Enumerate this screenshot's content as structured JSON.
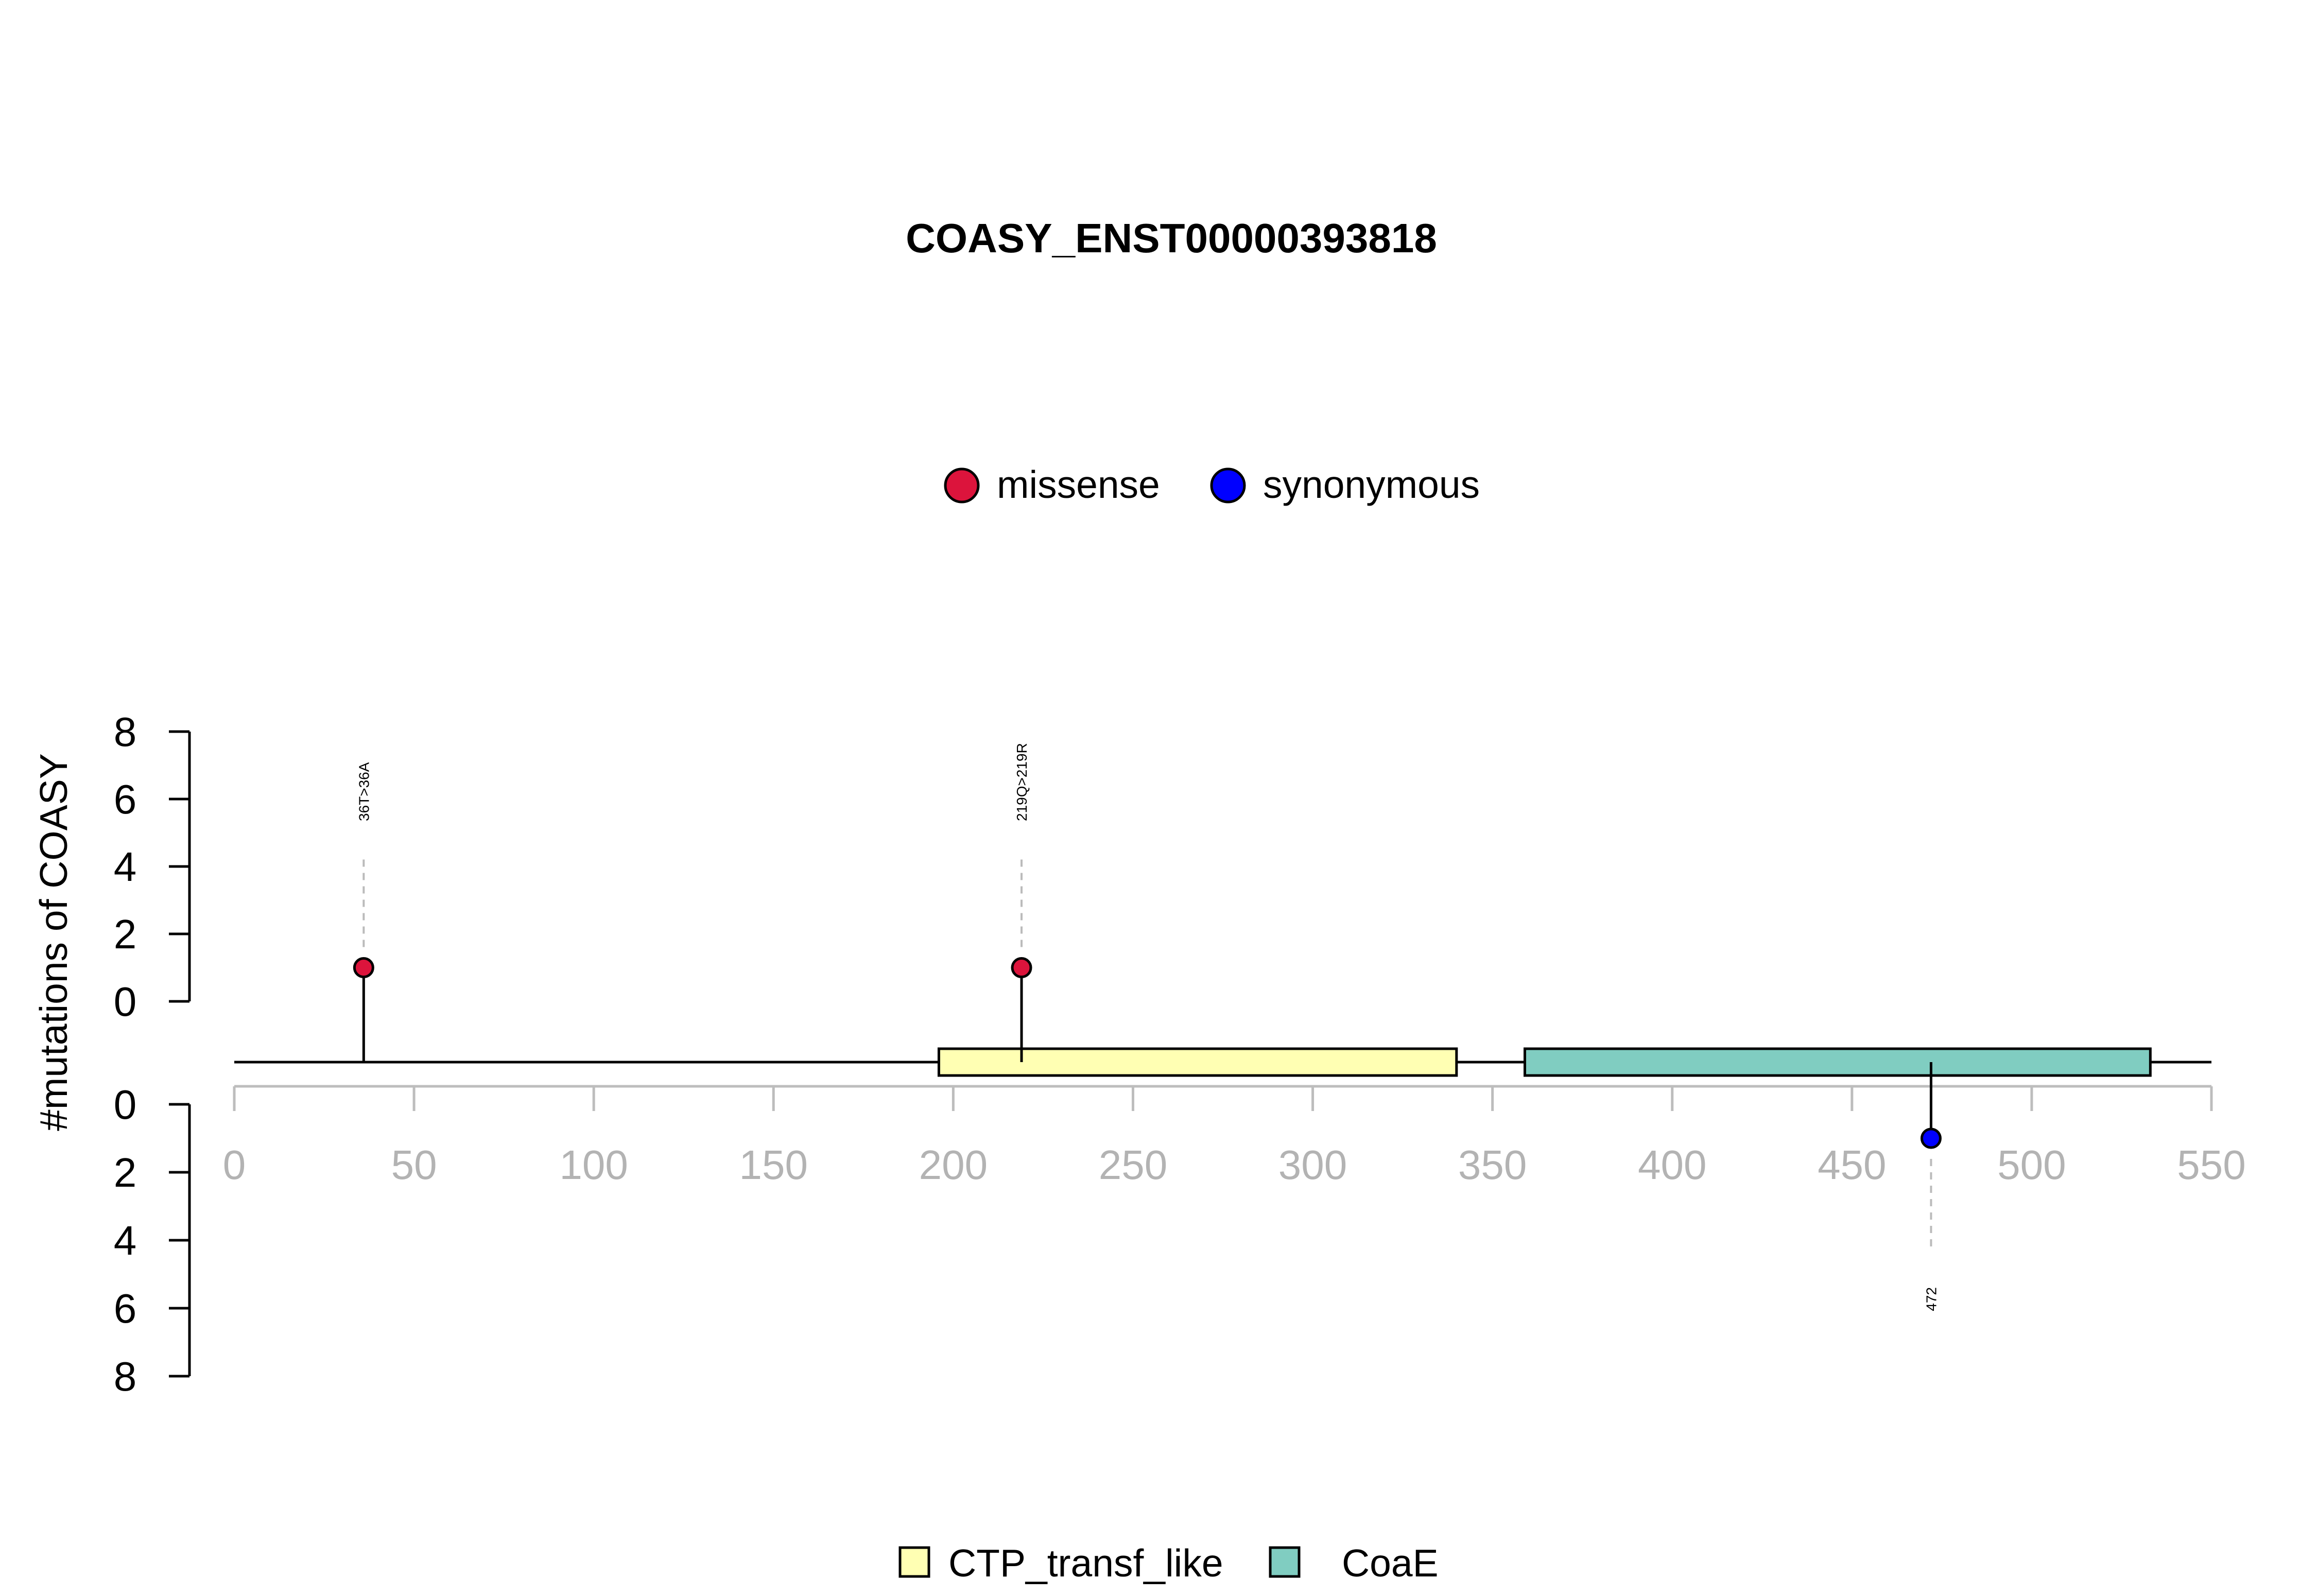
{
  "chart_data": {
    "type": "lollipop",
    "title": "COASY_ENST00000393818",
    "ylabel": "#mutations of COASY",
    "xlim": [
      0,
      550
    ],
    "x_ticks": [
      0,
      50,
      100,
      150,
      200,
      250,
      300,
      350,
      400,
      450,
      500,
      550
    ],
    "y_ticks": [
      0,
      2,
      4,
      6,
      8
    ],
    "ylim": [
      0,
      8
    ],
    "mutation_legend": [
      {
        "name": "missense",
        "color": "#dc143c"
      },
      {
        "name": "synonymous",
        "color": "#0000ff"
      }
    ],
    "domain_legend": [
      {
        "name": "CTP_transf_like",
        "color": "#ffffb3"
      },
      {
        "name": "CoaE",
        "color": "#80cdc1"
      }
    ],
    "domains": [
      {
        "name": "CTP_transf_like",
        "start": 196,
        "end": 340,
        "color": "#ffffb3"
      },
      {
        "name": "CoaE",
        "start": 359,
        "end": 533,
        "color": "#80cdc1"
      }
    ],
    "mutations": [
      {
        "position": 36,
        "count": 1,
        "type": "missense",
        "label": "36T>36A",
        "strand": "top",
        "color": "#dc143c"
      },
      {
        "position": 219,
        "count": 1,
        "type": "missense",
        "label": "219Q>219R",
        "strand": "top",
        "color": "#dc143c"
      },
      {
        "position": 472,
        "count": 1,
        "type": "synonymous",
        "label": "472",
        "strand": "bottom",
        "color": "#0000ff"
      }
    ]
  }
}
